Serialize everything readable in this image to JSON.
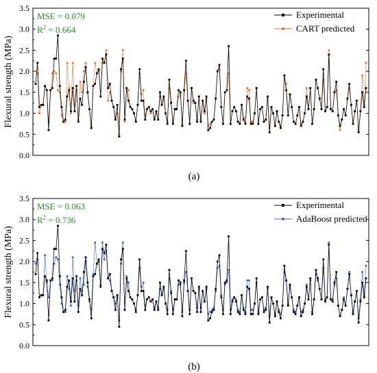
{
  "chart_data": [
    {
      "type": "line",
      "panel_label": "(a)",
      "ylabel": "Flexural strength (MPa)",
      "ylim": [
        0.0,
        3.5
      ],
      "yticks": [
        "0.0",
        "0.5",
        "1.0",
        "1.5",
        "2.0",
        "2.5",
        "3.0",
        "3.5"
      ],
      "stats": [
        {
          "name": "MSE",
          "value": "0.079"
        },
        {
          "name": "R",
          "sup": "2",
          "value": "0.664"
        }
      ],
      "stats_color": "#2e8b2e",
      "legend_position": "top-right",
      "series": [
        {
          "name": "Experimental",
          "color": "#000000",
          "marker": "square",
          "values": [
            1.7,
            2.2,
            1.15,
            1.2,
            1.2,
            1.65,
            1.55,
            0.6,
            1.55,
            1.6,
            2.3,
            2.3,
            2.85,
            1.65,
            1.15,
            0.8,
            0.85,
            1.4,
            1.55,
            1.05,
            1.6,
            1.05,
            1.65,
            0.8,
            1.35,
            1.2,
            1.75,
            2.1,
            1.5,
            1.1,
            0.65,
            1.65,
            1.7,
            1.95,
            2.05,
            1.4,
            2.3,
            2.2,
            2.4,
            1.6,
            1.7,
            1.3,
            1.15,
            0.85,
            1.2,
            0.45,
            2.05,
            2.3,
            0.85,
            1.6,
            1.3,
            1.15,
            1.1,
            1.0,
            0.8,
            1.2,
            2.05,
            1.3,
            1.3,
            0.85,
            1.1,
            1.15,
            1.05,
            1.1,
            0.85,
            1.05,
            0.85,
            1.5,
            1.2,
            1.4,
            1.0,
            0.75,
            1.8,
            1.25,
            0.75,
            1.1,
            1.1,
            1.55,
            1.5,
            0.7,
            1.55,
            2.25,
            1.3,
            0.75,
            1.6,
            1.3,
            1.25,
            0.8,
            1.4,
            0.8,
            1.3,
            1.05,
            1.4,
            0.6,
            0.65,
            0.8,
            0.85,
            1.35,
            2.0,
            2.15,
            1.15,
            0.75,
            1.5,
            1.55,
            2.6,
            0.75,
            1.05,
            1.15,
            1.05,
            0.8,
            0.75,
            1.2,
            0.85,
            0.75,
            1.4,
            1.35,
            0.75,
            0.75,
            1.0,
            1.6,
            0.75,
            1.1,
            1.15,
            0.8,
            0.85,
            1.4,
            0.55,
            1.15,
            1.0,
            0.7,
            1.05,
            0.8,
            0.65,
            0.95,
            1.9,
            1.55,
            0.95,
            1.45,
            1.15,
            0.8,
            0.75,
            0.95,
            1.15,
            0.7,
            0.8,
            1.0,
            1.4,
            1.1,
            1.6,
            0.75,
            1.1,
            1.8,
            1.6,
            1.35,
            1.1,
            2.05,
            1.05,
            1.15,
            2.4,
            1.1,
            1.05,
            1.5,
            1.75,
            0.95,
            0.7,
            0.85,
            1.1,
            0.95,
            1.35,
            1.7,
            1.2,
            0.75,
            1.05,
            1.3,
            0.55,
            1.05,
            1.5,
            1.15,
            1.6
          ]
        },
        {
          "name": "CART predicted",
          "color": "#f07030",
          "marker": "circle",
          "values": [
            2.0,
            1.95,
            1.0,
            1.2,
            1.2,
            1.65,
            1.55,
            0.8,
            1.55,
            1.95,
            2.0,
            1.95,
            1.55,
            1.5,
            0.95,
            0.8,
            0.8,
            2.2,
            1.6,
            1.0,
            2.2,
            1.2,
            1.55,
            0.85,
            1.75,
            1.5,
            2.0,
            2.2,
            1.5,
            1.1,
            0.7,
            1.65,
            2.2,
            1.95,
            2.0,
            1.4,
            2.2,
            2.2,
            2.5,
            1.3,
            1.5,
            1.3,
            1.15,
            0.9,
            1.0,
            0.5,
            2.0,
            2.5,
            0.8,
            1.6,
            1.55,
            1.15,
            1.1,
            1.0,
            0.8,
            1.2,
            1.95,
            1.45,
            1.55,
            0.95,
            1.1,
            1.15,
            1.0,
            1.1,
            0.9,
            1.0,
            0.85,
            1.4,
            1.2,
            1.35,
            1.0,
            0.8,
            1.6,
            1.25,
            0.8,
            1.1,
            1.1,
            1.4,
            1.45,
            0.75,
            1.55,
            1.95,
            1.3,
            0.75,
            1.6,
            1.25,
            1.25,
            0.85,
            1.4,
            0.85,
            1.3,
            1.0,
            1.35,
            0.7,
            0.75,
            0.8,
            0.85,
            1.35,
            2.0,
            2.05,
            1.15,
            0.75,
            1.5,
            1.55,
            1.95,
            0.75,
            1.05,
            1.15,
            1.05,
            0.8,
            0.75,
            1.2,
            0.9,
            0.75,
            1.6,
            1.55,
            0.8,
            0.8,
            1.0,
            1.6,
            0.75,
            1.1,
            1.15,
            0.8,
            0.85,
            1.35,
            0.65,
            1.15,
            1.0,
            0.7,
            1.05,
            0.8,
            0.7,
            0.95,
            1.9,
            1.7,
            0.95,
            1.45,
            1.15,
            0.8,
            0.75,
            0.95,
            1.15,
            0.75,
            0.8,
            1.0,
            1.6,
            1.1,
            1.6,
            0.75,
            1.1,
            1.8,
            1.6,
            1.35,
            1.1,
            1.8,
            1.05,
            1.15,
            2.5,
            1.1,
            1.05,
            1.5,
            1.55,
            0.95,
            0.6,
            0.85,
            1.1,
            0.95,
            1.35,
            1.6,
            1.2,
            0.75,
            1.05,
            1.3,
            0.6,
            1.05,
            1.9,
            1.2,
            2.2
          ]
        }
      ]
    },
    {
      "type": "line",
      "panel_label": "(b)",
      "ylabel": "Flexural strength (MPa)",
      "ylim": [
        0.0,
        3.5
      ],
      "yticks": [
        "0.0",
        "0.5",
        "1.0",
        "1.5",
        "2.0",
        "2.5",
        "3.0",
        "3.5"
      ],
      "stats": [
        {
          "name": "MSE",
          "value": "0.063"
        },
        {
          "name": "R",
          "sup": "2",
          "value": "0.736"
        }
      ],
      "stats_color": "#2e8b2e",
      "legend_position": "top-right",
      "series": [
        {
          "name": "Experimental",
          "color": "#000000",
          "marker": "square",
          "values": [
            1.7,
            2.2,
            1.15,
            1.2,
            1.2,
            1.65,
            1.55,
            0.6,
            1.55,
            1.6,
            2.3,
            2.3,
            2.85,
            1.65,
            1.15,
            0.8,
            0.85,
            1.4,
            1.55,
            1.05,
            1.6,
            1.05,
            1.65,
            0.8,
            1.35,
            1.2,
            1.75,
            2.1,
            1.5,
            1.1,
            0.65,
            1.65,
            1.7,
            1.95,
            2.05,
            1.4,
            2.3,
            2.2,
            2.4,
            1.6,
            1.7,
            1.3,
            1.15,
            0.85,
            1.2,
            0.45,
            2.05,
            2.3,
            0.85,
            1.6,
            1.3,
            1.15,
            1.1,
            1.0,
            0.8,
            1.2,
            2.05,
            1.3,
            1.3,
            0.85,
            1.1,
            1.15,
            1.05,
            1.1,
            0.85,
            1.05,
            0.85,
            1.5,
            1.2,
            1.4,
            1.0,
            0.75,
            1.8,
            1.25,
            0.75,
            1.1,
            1.1,
            1.55,
            1.5,
            0.7,
            1.55,
            2.25,
            1.3,
            0.75,
            1.6,
            1.3,
            1.25,
            0.8,
            1.4,
            0.8,
            1.3,
            1.05,
            1.4,
            0.6,
            0.65,
            0.8,
            0.85,
            1.35,
            2.0,
            2.15,
            1.15,
            0.75,
            1.5,
            1.55,
            2.6,
            0.75,
            1.05,
            1.15,
            1.05,
            0.8,
            0.75,
            1.2,
            0.85,
            0.75,
            1.4,
            1.35,
            0.75,
            0.75,
            1.0,
            1.6,
            0.75,
            1.1,
            1.15,
            0.8,
            0.85,
            1.4,
            0.55,
            1.15,
            1.0,
            0.7,
            1.05,
            0.8,
            0.65,
            0.95,
            1.9,
            1.55,
            0.95,
            1.45,
            1.15,
            0.8,
            0.75,
            0.95,
            1.15,
            0.7,
            0.8,
            1.0,
            1.4,
            1.1,
            1.6,
            0.75,
            1.1,
            1.8,
            1.6,
            1.35,
            1.1,
            2.05,
            1.05,
            1.15,
            2.4,
            1.1,
            1.05,
            1.5,
            1.75,
            0.95,
            0.7,
            0.85,
            1.1,
            0.95,
            1.35,
            1.7,
            1.2,
            0.75,
            1.05,
            1.3,
            0.55,
            1.05,
            1.5,
            1.15,
            1.6
          ]
        },
        {
          "name": "AdaBoost predicted",
          "color": "#3b63d6",
          "marker": "circle",
          "values": [
            1.95,
            2.05,
            1.15,
            1.2,
            1.2,
            2.15,
            1.5,
            1.15,
            1.55,
            1.55,
            1.95,
            2.1,
            2.05,
            1.45,
            1.0,
            0.8,
            0.8,
            1.65,
            1.35,
            0.95,
            2.1,
            1.3,
            1.55,
            0.95,
            1.6,
            1.3,
            1.45,
            2.0,
            1.4,
            1.05,
            0.85,
            1.7,
            2.45,
            1.95,
            2.0,
            1.45,
            2.45,
            2.05,
            2.25,
            1.6,
            1.55,
            1.3,
            1.15,
            1.0,
            1.15,
            0.6,
            1.95,
            2.45,
            0.85,
            1.65,
            1.5,
            1.15,
            1.1,
            1.0,
            0.85,
            1.2,
            1.85,
            1.4,
            1.5,
            0.95,
            1.1,
            1.15,
            1.05,
            1.1,
            0.9,
            1.05,
            0.9,
            1.35,
            1.25,
            1.35,
            1.0,
            0.85,
            1.6,
            1.3,
            0.85,
            1.1,
            1.1,
            1.45,
            1.45,
            0.8,
            1.5,
            1.75,
            1.3,
            0.85,
            1.6,
            1.3,
            1.25,
            0.9,
            1.35,
            0.9,
            1.3,
            1.05,
            1.35,
            0.75,
            0.8,
            0.85,
            0.9,
            1.3,
            1.85,
            1.9,
            1.2,
            0.85,
            1.45,
            1.5,
            1.8,
            0.85,
            1.1,
            1.15,
            1.1,
            0.85,
            0.8,
            1.2,
            0.9,
            0.8,
            1.55,
            1.55,
            0.85,
            0.85,
            1.0,
            1.5,
            0.8,
            1.1,
            1.15,
            0.85,
            0.9,
            1.35,
            0.7,
            1.15,
            1.0,
            0.75,
            1.05,
            0.85,
            0.75,
            0.95,
            1.75,
            1.55,
            1.0,
            1.4,
            1.15,
            0.85,
            0.8,
            0.95,
            1.15,
            0.8,
            0.85,
            1.0,
            1.45,
            1.1,
            1.55,
            0.8,
            1.1,
            1.7,
            1.55,
            1.35,
            1.1,
            1.85,
            1.1,
            1.15,
            2.45,
            1.1,
            1.1,
            1.45,
            1.6,
            0.95,
            0.7,
            0.85,
            1.15,
            0.95,
            1.35,
            1.75,
            1.2,
            0.8,
            1.05,
            1.3,
            0.65,
            1.1,
            1.75,
            1.2,
            1.9
          ]
        }
      ]
    }
  ]
}
